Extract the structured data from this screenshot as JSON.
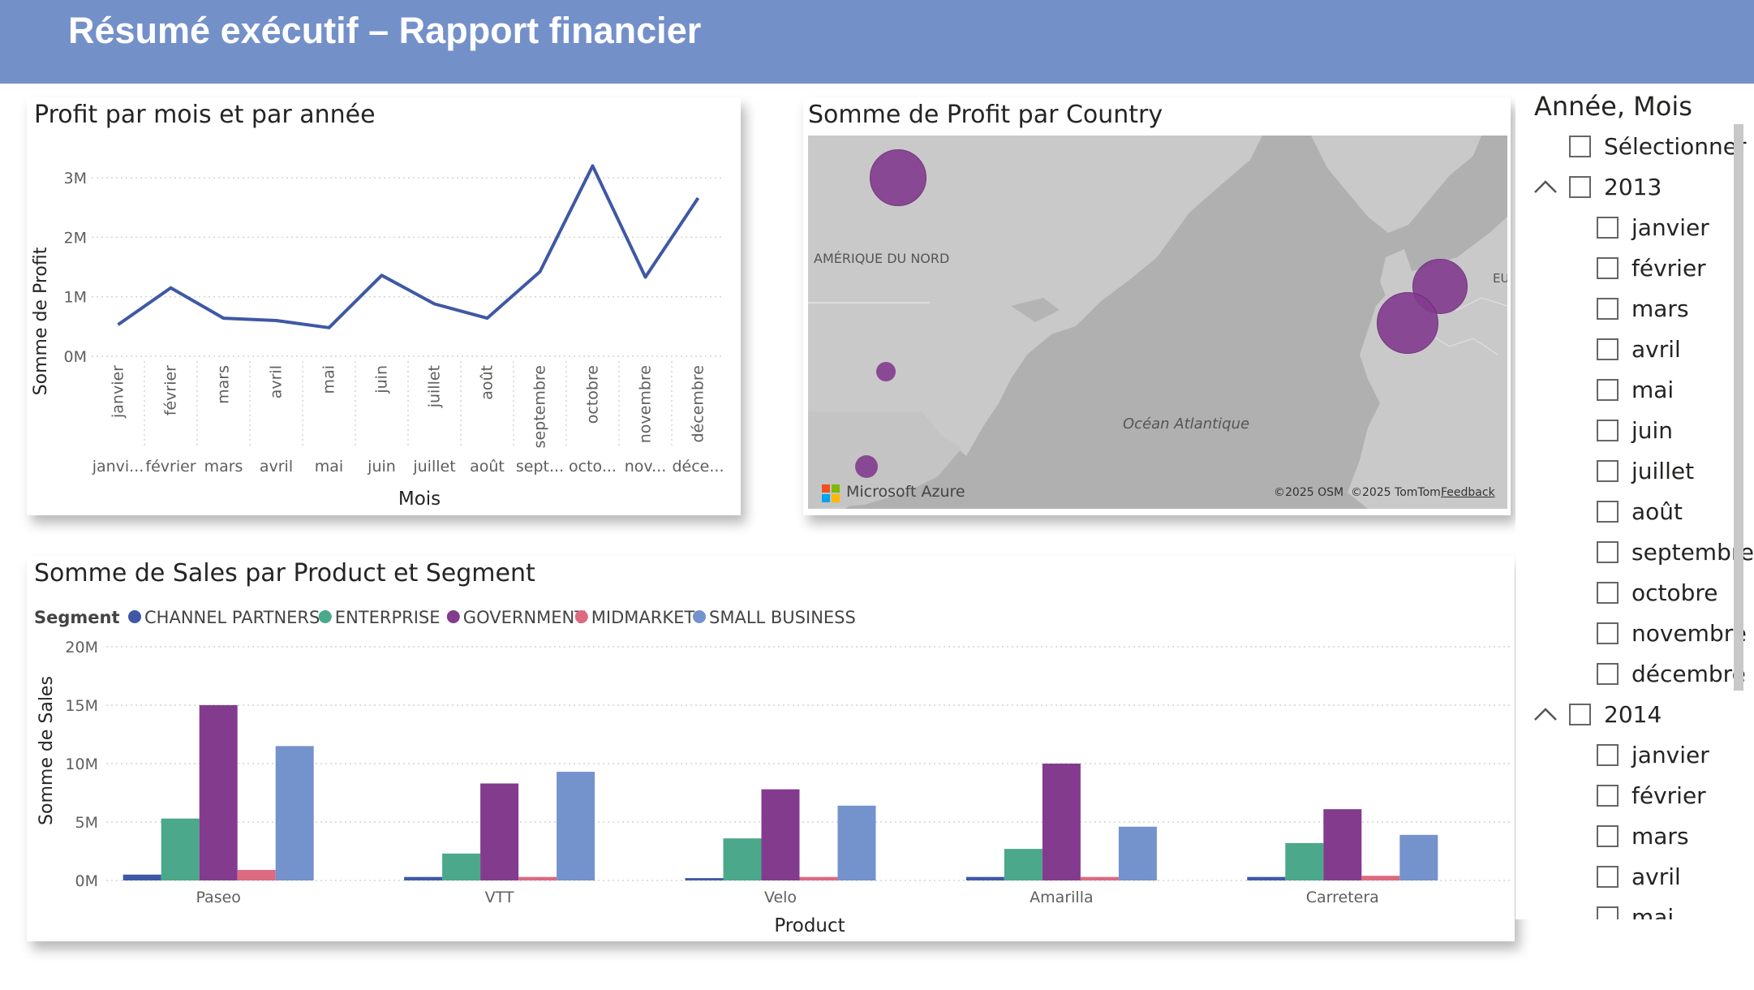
{
  "header": {
    "title": "Résumé exécutif – Rapport financier"
  },
  "line_card": {
    "title": "Profit par mois et par année",
    "y_label": "Somme de Profit",
    "x_label": "Mois",
    "y_ticks": [
      "3M",
      "2M",
      "1M",
      "0M"
    ],
    "x_rotated": [
      "janvier",
      "février",
      "mars",
      "avril",
      "mai",
      "juin",
      "juillet",
      "août",
      "septembre",
      "octobre",
      "novembre",
      "décembre"
    ],
    "x_bottom": [
      "janvi...",
      "février",
      "mars",
      "avril",
      "mai",
      "juin",
      "juillet",
      "août",
      "sept...",
      "octo...",
      "nov...",
      "déce..."
    ]
  },
  "map_card": {
    "title": "Somme de Profit par Country",
    "label_north_america": "AMÉRIQUE DU NORD",
    "label_ocean": "Océan Atlantique",
    "label_eu": "EU",
    "brand": "Microsoft Azure",
    "attribution": "©2025 OSM  ©2025 TomTom",
    "feedback": "Feedback",
    "bubble_color": "#833b8e"
  },
  "bar_card": {
    "title": "Somme de Sales par Product et Segment",
    "legend_title": "Segment",
    "y_label": "Somme de Sales",
    "x_label": "Product",
    "y_ticks": [
      "20M",
      "15M",
      "10M",
      "5M",
      "0M"
    ]
  },
  "slicer": {
    "title": "Année, Mois",
    "select_all": "Sélectionner ...",
    "years": [
      {
        "year": "2013",
        "months": [
          "janvier",
          "février",
          "mars",
          "avril",
          "mai",
          "juin",
          "juillet",
          "août",
          "septembre",
          "octobre",
          "novembre",
          "décembre"
        ]
      },
      {
        "year": "2014",
        "months": [
          "janvier",
          "février",
          "mars",
          "avril",
          "mai"
        ]
      }
    ]
  },
  "chart_data": [
    {
      "type": "line",
      "title": "Profit par mois et par année",
      "xlabel": "Mois",
      "ylabel": "Somme de Profit",
      "x": [
        "janvier",
        "février",
        "mars",
        "avril",
        "mai",
        "juin",
        "juillet",
        "août",
        "septembre",
        "octobre",
        "novembre",
        "décembre"
      ],
      "series": [
        {
          "values": [
            0.53,
            1.15,
            0.64,
            0.6,
            0.48,
            1.36,
            0.88,
            0.64,
            1.42,
            3.2,
            1.33,
            2.66
          ]
        }
      ],
      "ylim": [
        0,
        3.3
      ],
      "color": "#3f58a5",
      "grid": true
    },
    {
      "type": "bar",
      "title": "Somme de Sales par Product et Segment",
      "xlabel": "Product",
      "ylabel": "Somme de Sales",
      "categories": [
        "Paseo",
        "VTT",
        "Velo",
        "Amarilla",
        "Carretera"
      ],
      "series": [
        {
          "name": "CHANNEL PARTNERS",
          "color": "#3f58a5",
          "values": [
            0.5,
            0.3,
            0.2,
            0.3,
            0.3
          ]
        },
        {
          "name": "ENTERPRISE",
          "color": "#4ba88a",
          "values": [
            5.3,
            2.3,
            3.6,
            2.7,
            3.2
          ]
        },
        {
          "name": "GOVERNMENT",
          "color": "#833b8e",
          "values": [
            15.0,
            8.3,
            7.8,
            10.0,
            6.1
          ]
        },
        {
          "name": "MIDMARKET",
          "color": "#dc6a80",
          "values": [
            0.9,
            0.3,
            0.3,
            0.3,
            0.4
          ]
        },
        {
          "name": "SMALL BUSINESS",
          "color": "#7492cc",
          "values": [
            11.5,
            9.3,
            6.4,
            4.6,
            3.9
          ]
        }
      ],
      "ylim": [
        0,
        20
      ],
      "grid": true,
      "legend": "top-left"
    }
  ]
}
